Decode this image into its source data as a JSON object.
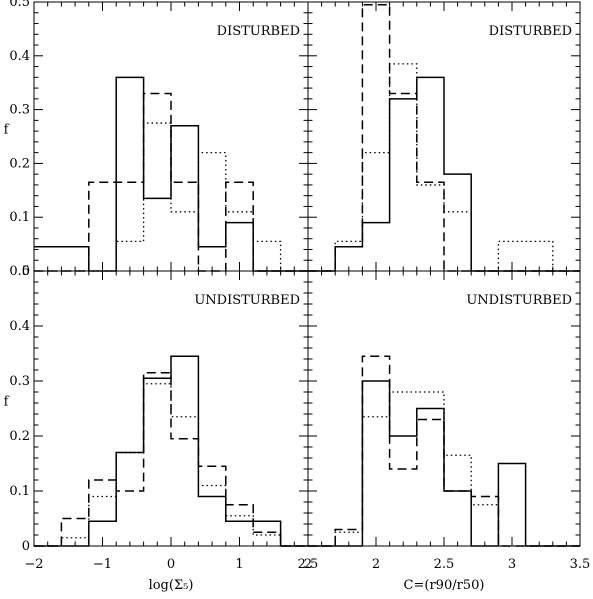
{
  "chart_data": [
    {
      "type": "histogram",
      "annotation": "DISTURBED",
      "ylabel": "f",
      "xlim": [
        -2,
        2
      ],
      "ylim": [
        0,
        0.5
      ],
      "edges": [
        -2,
        -1.6,
        -1.2,
        -0.8,
        -0.4,
        0,
        0.4,
        0.8,
        1.2,
        1.6,
        2
      ],
      "series": [
        {
          "style": "solid",
          "values": [
            0.045,
            0.045,
            0.0,
            0.36,
            0.135,
            0.27,
            0.045,
            0.09,
            0.0,
            0.0
          ]
        },
        {
          "style": "dashed",
          "values": [
            0.0,
            0.0,
            0.165,
            0.165,
            0.33,
            0.165,
            0.0,
            0.165,
            0.0,
            0.0
          ]
        },
        {
          "style": "dotted",
          "values": [
            0.0,
            0.0,
            0.0,
            0.055,
            0.275,
            0.11,
            0.22,
            0.11,
            0.055,
            0.0
          ]
        }
      ],
      "x_tick_labels": [],
      "y_tick_labels": [
        "0",
        "0.1",
        "0.2",
        "0.3",
        "0.4",
        "0.5"
      ]
    },
    {
      "type": "histogram",
      "annotation": "DISTURBED",
      "xlim": [
        1.5,
        3.5
      ],
      "ylim": [
        0,
        0.5
      ],
      "edges": [
        1.5,
        1.7,
        1.9,
        2.1,
        2.3,
        2.5,
        2.7,
        2.9,
        3.1,
        3.3,
        3.5
      ],
      "series": [
        {
          "style": "solid",
          "values": [
            0.0,
            0.045,
            0.09,
            0.32,
            0.36,
            0.18,
            0.0,
            0.0,
            0.0,
            0.0
          ]
        },
        {
          "style": "dashed",
          "values": [
            0.0,
            0.045,
            0.495,
            0.33,
            0.165,
            0.0,
            0.0,
            0.0,
            0.0,
            0.0
          ]
        },
        {
          "style": "dotted",
          "values": [
            0.0,
            0.055,
            0.22,
            0.385,
            0.16,
            0.11,
            0.0,
            0.055,
            0.055,
            0.0
          ]
        }
      ],
      "x_tick_labels": [],
      "y_tick_labels": []
    },
    {
      "type": "histogram",
      "annotation": "UNDISTURBED",
      "ylabel": "f",
      "xlabel": "log(Σ₅)",
      "xlim": [
        -2,
        2
      ],
      "ylim": [
        0,
        0.5
      ],
      "edges": [
        -2,
        -1.6,
        -1.2,
        -0.8,
        -0.4,
        0,
        0.4,
        0.8,
        1.2,
        1.6,
        2
      ],
      "series": [
        {
          "style": "solid",
          "values": [
            0.0,
            0.0,
            0.045,
            0.17,
            0.305,
            0.345,
            0.09,
            0.045,
            0.045,
            0.0
          ]
        },
        {
          "style": "dashed",
          "values": [
            0.0,
            0.05,
            0.12,
            0.1,
            0.315,
            0.195,
            0.145,
            0.075,
            0.025,
            0.0
          ]
        },
        {
          "style": "dotted",
          "values": [
            0.0,
            0.015,
            0.09,
            0.17,
            0.295,
            0.235,
            0.11,
            0.055,
            0.02,
            0.0
          ]
        }
      ],
      "x_tick_labels": [
        "−2",
        "−1",
        "0",
        "1",
        "2"
      ],
      "y_tick_labels": [
        "0",
        "0.1",
        "0.2",
        "0.3",
        "0.4",
        "0.5"
      ]
    },
    {
      "type": "histogram",
      "annotation": "UNDISTURBED",
      "xlabel": "C=(r90/r50)",
      "xlim": [
        1.5,
        3.5
      ],
      "ylim": [
        0,
        0.5
      ],
      "edges": [
        1.5,
        1.7,
        1.9,
        2.1,
        2.3,
        2.5,
        2.7,
        2.9,
        3.1,
        3.3,
        3.5
      ],
      "series": [
        {
          "style": "solid",
          "values": [
            0.0,
            0.0,
            0.3,
            0.2,
            0.25,
            0.1,
            0.0,
            0.15,
            0.0,
            0.0
          ]
        },
        {
          "style": "dashed",
          "values": [
            0.0,
            0.03,
            0.345,
            0.14,
            0.23,
            0.1,
            0.09,
            0.0,
            0.0,
            0.0
          ]
        },
        {
          "style": "dotted",
          "values": [
            0.0,
            0.025,
            0.235,
            0.28,
            0.28,
            0.165,
            0.075,
            0.0,
            0.0,
            0.0
          ]
        }
      ],
      "x_tick_labels": [
        "2.5",
        "2",
        "2.5",
        "3",
        "3.5"
      ],
      "y_tick_labels": []
    }
  ]
}
